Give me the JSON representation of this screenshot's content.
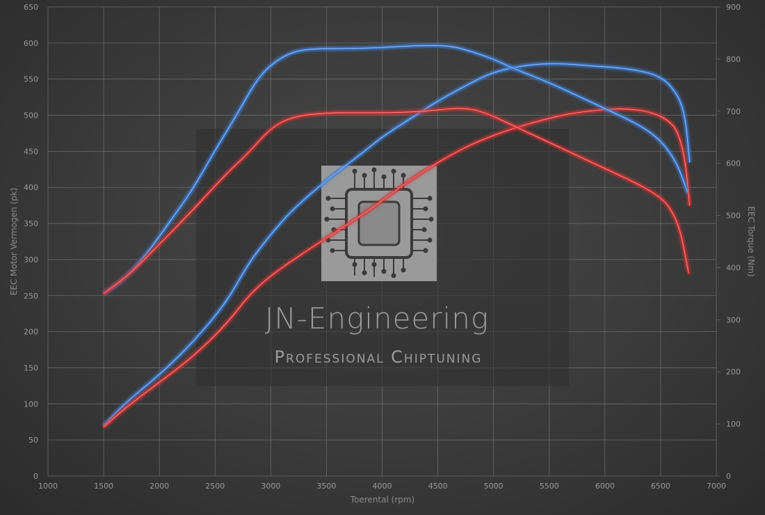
{
  "chart_data": {
    "type": "line",
    "xlabel": "Toerental (rpm)",
    "ylabel": "EEC Motor Vermogen (pk)",
    "y2label": "EEC Torque (Nm)",
    "xlim": [
      1000,
      7000
    ],
    "xticks": [
      "1000",
      "1500",
      "2000",
      "2500",
      "3000",
      "3500",
      "4000",
      "4500",
      "5000",
      "5500",
      "6000",
      "6500",
      "7000"
    ],
    "ylim": [
      0,
      650
    ],
    "yticks": [
      "0",
      "50",
      "100",
      "150",
      "200",
      "250",
      "300",
      "350",
      "400",
      "450",
      "500",
      "550",
      "600",
      "650"
    ],
    "y2lim": [
      0,
      900
    ],
    "y2ticks": [
      "0",
      "100",
      "200",
      "300",
      "400",
      "500",
      "600",
      "700",
      "800",
      "900"
    ],
    "grid": true,
    "watermark": {
      "title": "JN-Engineering",
      "subtitle": "Professional Chiptuning",
      "icon": "circuit-chip-icon"
    },
    "series": [
      {
        "axis": "left",
        "color": "#3f7fd8",
        "points": [
          [
            1500,
            70
          ],
          [
            1700,
            102
          ],
          [
            2000,
            140
          ],
          [
            2300,
            185
          ],
          [
            2600,
            240
          ],
          [
            2800,
            295
          ],
          [
            3000,
            335
          ],
          [
            3200,
            370
          ],
          [
            3500,
            410
          ],
          [
            3800,
            445
          ],
          [
            4000,
            470
          ],
          [
            4200,
            490
          ],
          [
            4500,
            520
          ],
          [
            4800,
            545
          ],
          [
            5000,
            560
          ],
          [
            5300,
            570
          ],
          [
            5600,
            572
          ],
          [
            5900,
            568
          ],
          [
            6200,
            565
          ],
          [
            6500,
            555
          ],
          [
            6650,
            530
          ],
          [
            6720,
            500
          ],
          [
            6760,
            435
          ]
        ]
      },
      {
        "axis": "left",
        "color": "#d93434",
        "points": [
          [
            1500,
            68
          ],
          [
            1700,
            95
          ],
          [
            2000,
            130
          ],
          [
            2300,
            165
          ],
          [
            2600,
            210
          ],
          [
            2800,
            250
          ],
          [
            3000,
            278
          ],
          [
            3300,
            310
          ],
          [
            3600,
            340
          ],
          [
            3900,
            370
          ],
          [
            4200,
            405
          ],
          [
            4500,
            435
          ],
          [
            4800,
            460
          ],
          [
            5100,
            478
          ],
          [
            5400,
            492
          ],
          [
            5700,
            503
          ],
          [
            6000,
            508
          ],
          [
            6200,
            509
          ],
          [
            6400,
            505
          ],
          [
            6550,
            495
          ],
          [
            6650,
            480
          ],
          [
            6720,
            440
          ],
          [
            6760,
            375
          ]
        ]
      },
      {
        "axis": "right",
        "color": "#3f7fd8",
        "points": [
          [
            1500,
            350
          ],
          [
            1700,
            380
          ],
          [
            1900,
            430
          ],
          [
            2100,
            490
          ],
          [
            2300,
            550
          ],
          [
            2500,
            625
          ],
          [
            2700,
            695
          ],
          [
            2900,
            770
          ],
          [
            3100,
            805
          ],
          [
            3300,
            820
          ],
          [
            3700,
            820
          ],
          [
            4000,
            822
          ],
          [
            4300,
            826
          ],
          [
            4600,
            826
          ],
          [
            4800,
            815
          ],
          [
            5000,
            800
          ],
          [
            5200,
            780
          ],
          [
            5500,
            755
          ],
          [
            5800,
            725
          ],
          [
            6000,
            705
          ],
          [
            6300,
            675
          ],
          [
            6500,
            645
          ],
          [
            6650,
            600
          ],
          [
            6740,
            545
          ]
        ]
      },
      {
        "axis": "right",
        "color": "#d93434",
        "points": [
          [
            1500,
            350
          ],
          [
            1750,
            390
          ],
          [
            2000,
            445
          ],
          [
            2300,
            510
          ],
          [
            2600,
            580
          ],
          [
            2800,
            620
          ],
          [
            3000,
            668
          ],
          [
            3200,
            690
          ],
          [
            3500,
            697
          ],
          [
            3800,
            697
          ],
          [
            4100,
            697
          ],
          [
            4400,
            700
          ],
          [
            4700,
            707
          ],
          [
            4900,
            700
          ],
          [
            5200,
            670
          ],
          [
            5500,
            640
          ],
          [
            5800,
            610
          ],
          [
            6100,
            580
          ],
          [
            6300,
            560
          ],
          [
            6500,
            535
          ],
          [
            6600,
            510
          ],
          [
            6680,
            470
          ],
          [
            6750,
            390
          ]
        ]
      }
    ]
  }
}
